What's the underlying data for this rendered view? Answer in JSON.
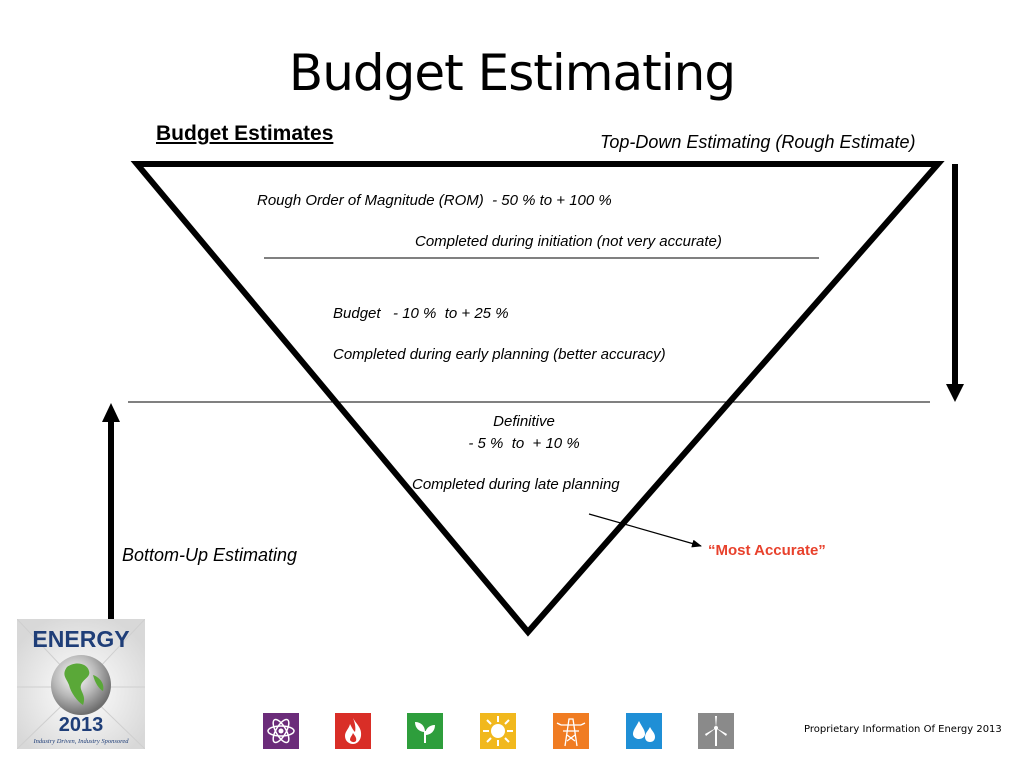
{
  "slide": {
    "title": "Budget Estimating",
    "section_heading": "Budget Estimates",
    "top_down_label": "Top-Down Estimating (Rough Estimate)",
    "bottom_up_label": "Bottom-Up Estimating"
  },
  "tiers": {
    "rom": {
      "label": "Rough Order of Magnitude (ROM)  - 50 % to + 100 %",
      "description": "Completed during initiation (not very accurate)"
    },
    "budget": {
      "label": "Budget   - 10 %  to + 25 %",
      "description": "Completed during early planning (better accuracy)"
    },
    "definitive": {
      "title": "Definitive",
      "range": "- 5 %  to  + 10 %",
      "description": "Completed during late planning"
    }
  },
  "callout": {
    "text": "“Most Accurate”",
    "color": "#e8412c"
  },
  "logo": {
    "word": "ENERGY",
    "year": "2013",
    "tagline": "Industry Driven, Industry Sponsored"
  },
  "footer": {
    "text": "Proprietary Information Of Energy 2013"
  },
  "sector_icons": [
    {
      "name": "atom-icon",
      "color": "#6b2c7a"
    },
    {
      "name": "flame-icon",
      "color": "#d92e27"
    },
    {
      "name": "leaf-icon",
      "color": "#2e9e3c"
    },
    {
      "name": "sun-icon",
      "color": "#f1b81d"
    },
    {
      "name": "power-tower-icon",
      "color": "#f07c22"
    },
    {
      "name": "water-drops-icon",
      "color": "#1f8fd6"
    },
    {
      "name": "wind-turbine-icon",
      "color": "#8a8a8a"
    }
  ]
}
